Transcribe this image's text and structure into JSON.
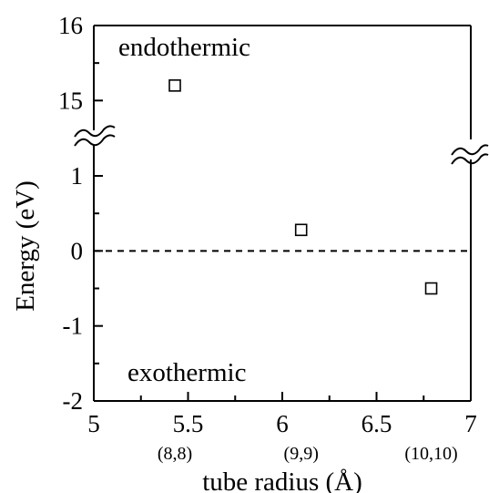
{
  "chart_data": {
    "type": "scatter",
    "xlabel": "tube radius (Å)",
    "ylabel": "Energy (eV)",
    "xlim": [
      5,
      7
    ],
    "x_ticks": [
      "5",
      "5.5",
      "6",
      "6.5",
      "7"
    ],
    "y_ticks_lower": [
      "-2",
      "-1",
      "0",
      "1"
    ],
    "y_ticks_upper": [
      "15",
      "16"
    ],
    "axis_break": {
      "lower_max": 1.4,
      "upper_min": 14.5
    },
    "points": [
      {
        "x": 5.43,
        "y": 15.2,
        "label": "(8,8)"
      },
      {
        "x": 6.1,
        "y": 0.28,
        "label": "(9,9)"
      },
      {
        "x": 6.79,
        "y": -0.5,
        "label": "(10,10)"
      }
    ],
    "reference_line": {
      "y": 0,
      "style": "dashed"
    },
    "annotations": {
      "top": "endothermic",
      "bottom": "exothermic"
    },
    "marker": "open-square",
    "grid": false,
    "legend": "none"
  }
}
